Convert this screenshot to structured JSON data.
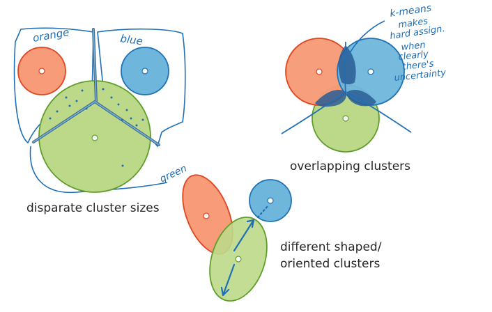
{
  "captions": {
    "disparate": "disparate cluster sizes",
    "overlapping": "overlapping clusters",
    "shaped_line1": "different shaped/",
    "shaped_line2": "oriented clusters"
  },
  "handwritten_labels": {
    "orange": "orange",
    "blue": "blue",
    "green": "green",
    "note": [
      "k-means",
      "makes",
      "hard assign.",
      "when",
      "clearly",
      "there's",
      "uncertainty"
    ]
  },
  "colors": {
    "orange_fill": "#f79b78",
    "orange_stroke": "#e0461f",
    "blue_fill": "#6fb6dc",
    "blue_stroke": "#1f72b4",
    "green_fill": "#bcd98a",
    "green_stroke": "#5f9e2a",
    "pen": "#1f6fb6",
    "pen_dark": "#2a5d95",
    "text": "#262626"
  }
}
